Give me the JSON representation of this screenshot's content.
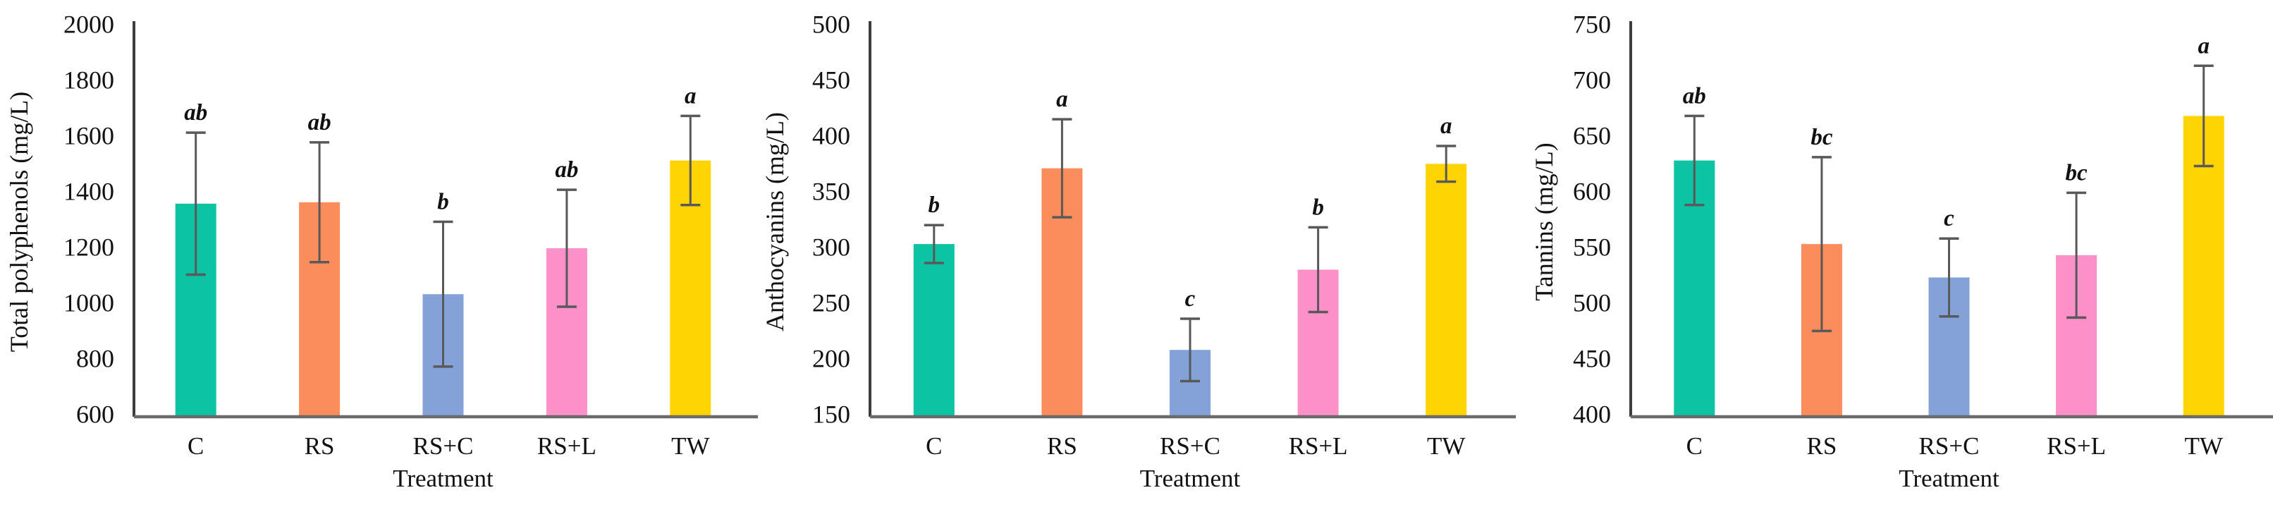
{
  "figure": {
    "description": "Three bar charts of wine phenolic measurements by treatment",
    "shared_x_axis_label": "Treatment",
    "categories": [
      "C",
      "RS",
      "RS+C",
      "RS+L",
      "TW"
    ],
    "bar_colors": [
      "#0cc3a4",
      "#fb8d5d",
      "#84a2d8",
      "#fc90c9",
      "#ffd402"
    ],
    "error_bar_color": "#595959",
    "axis_line_color": "#3d3d3d",
    "baseline_color": "#6a6a6a",
    "text_color": "#111111"
  },
  "chart_data": [
    {
      "type": "bar",
      "title": "",
      "ylabel": "Total polyphenols (mg/L)",
      "xlabel": "Treatment",
      "categories": [
        "C",
        "RS",
        "RS+C",
        "RS+L",
        "TW"
      ],
      "values": [
        1365,
        1370,
        1040,
        1205,
        1520
      ],
      "errors": [
        255,
        215,
        260,
        210,
        160
      ],
      "significance_letters": [
        "ab",
        "ab",
        "b",
        "ab",
        "a"
      ],
      "ylim": [
        600,
        2000
      ],
      "ytick_step": 200,
      "ytick_labels": [
        "600",
        "800",
        "1000",
        "1200",
        "1400",
        "1600",
        "1800",
        "2000"
      ],
      "grid": false,
      "legend": false
    },
    {
      "type": "bar",
      "title": "",
      "ylabel": "Anthocyanins (mg/L)",
      "xlabel": "Treatment",
      "categories": [
        "C",
        "RS",
        "RS+C",
        "RS+L",
        "TW"
      ],
      "values": [
        305,
        373,
        210,
        282,
        377
      ],
      "errors": [
        17,
        44,
        28,
        38,
        16
      ],
      "significance_letters": [
        "b",
        "a",
        "c",
        "b",
        "a"
      ],
      "ylim": [
        150,
        500
      ],
      "ytick_step": 50,
      "ytick_labels": [
        "150",
        "200",
        "250",
        "300",
        "350",
        "400",
        "450",
        "500"
      ],
      "grid": false,
      "legend": false
    },
    {
      "type": "bar",
      "title": "",
      "ylabel": "Tannins (mg/L)",
      "xlabel": "Treatment",
      "categories": [
        "C",
        "RS",
        "RS+C",
        "RS+L",
        "TW"
      ],
      "values": [
        630,
        555,
        525,
        545,
        670
      ],
      "errors": [
        40,
        78,
        35,
        56,
        45
      ],
      "significance_letters": [
        "ab",
        "bc",
        "c",
        "bc",
        "a"
      ],
      "ylim": [
        400,
        750
      ],
      "ytick_step": 50,
      "ytick_labels": [
        "400",
        "450",
        "500",
        "550",
        "600",
        "650",
        "700",
        "750"
      ],
      "grid": false,
      "legend": false
    }
  ]
}
